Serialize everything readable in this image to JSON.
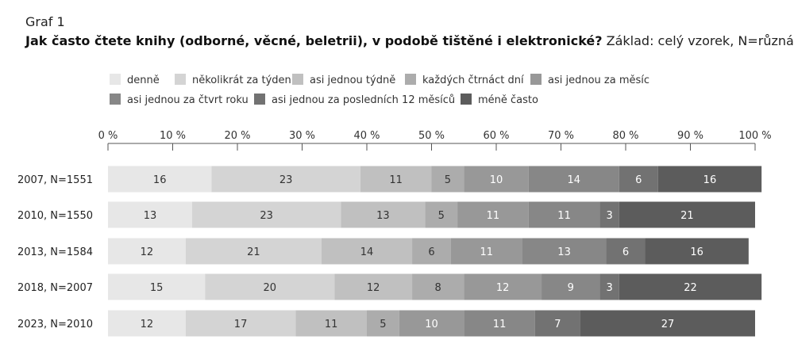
{
  "header": {
    "graf_label": "Graf 1",
    "title": "Jak často čtete knihy (odborné, věcné, beletrii), v podobě tištěné i elektronické?",
    "subtitle": "Základ: celý vzorek, N=různá"
  },
  "chart_data": {
    "type": "bar",
    "orientation": "horizontal",
    "stacked": true,
    "x_ticks": [
      "0 %",
      "10 %",
      "20 %",
      "30 %",
      "40 %",
      "50 %",
      "60 %",
      "70 %",
      "80 %",
      "90 %",
      "100 %"
    ],
    "xlim": [
      0,
      100
    ],
    "legend_position": "top",
    "categories": [
      "2007, N=1551",
      "2010, N=1550",
      "2013, N=1584",
      "2018, N=2007",
      "2023, N=2010"
    ],
    "series": [
      {
        "name": "denně",
        "color": "#e7e7e7",
        "text_color": "#333333",
        "values": [
          16,
          13,
          12,
          15,
          12
        ]
      },
      {
        "name": "několikrát za týden",
        "color": "#d4d4d4",
        "text_color": "#333333",
        "values": [
          23,
          23,
          21,
          20,
          17
        ]
      },
      {
        "name": "asi jednou týdně",
        "color": "#c0c0c0",
        "text_color": "#333333",
        "values": [
          11,
          13,
          14,
          12,
          11
        ]
      },
      {
        "name": "každých čtrnáct dní",
        "color": "#acacac",
        "text_color": "#333333",
        "values": [
          5,
          5,
          6,
          8,
          5
        ]
      },
      {
        "name": "asi jednou za měsíc",
        "color": "#989898",
        "text_color": "#ffffff",
        "values": [
          10,
          11,
          11,
          12,
          10
        ]
      },
      {
        "name": "asi jednou za čtvrt roku",
        "color": "#878787",
        "text_color": "#ffffff",
        "values": [
          14,
          11,
          13,
          9,
          11
        ]
      },
      {
        "name": "asi jednou za posledních 12 měsíců",
        "color": "#727272",
        "text_color": "#ffffff",
        "values": [
          6,
          3,
          6,
          3,
          7
        ]
      },
      {
        "name": "méně často",
        "color": "#5c5c5c",
        "text_color": "#ffffff",
        "values": [
          16,
          21,
          16,
          22,
          27
        ]
      }
    ]
  }
}
